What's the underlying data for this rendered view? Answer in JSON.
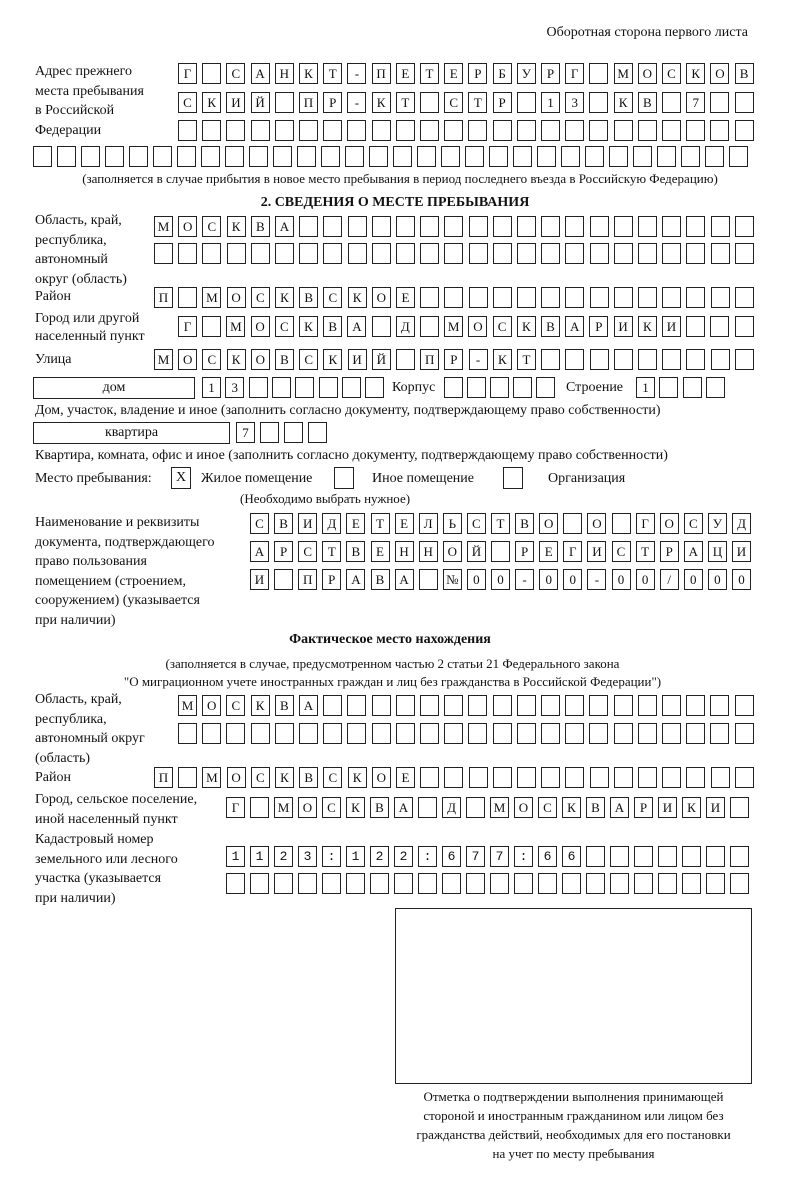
{
  "header": {
    "side_label": "Оборотная сторона первого листа"
  },
  "previous_address": {
    "label": "Адрес прежнего\nместа пребывания\nв Российской\nФедерации",
    "rows": [
      "Г САНКТ-ПЕТЕРБУРГ МОСКОВ",
      "СКИЙ ПР-КТ СТР 13 КВ 7",
      "",
      ""
    ],
    "note": "(заполняется в случае прибытия в новое место пребывания в период последнего въезда в Российскую Федерацию)"
  },
  "section2": {
    "title": "2. СВЕДЕНИЯ О МЕСТЕ ПРЕБЫВАНИЯ",
    "region_label": "Область, край,\nреспублика,\nавтономный\nокруг (область)",
    "region_rows": [
      "МОСКВА",
      ""
    ],
    "district_label": "Район",
    "district": "П МОСКВСКОЕ",
    "city_label": "Город или другой\nнаселенный пункт",
    "city": "Г МОСКВА Д МОСКВАРИКИ",
    "street_label": "Улица",
    "street": "МОСКОВСКИЙ ПР-КТ",
    "house_type": "дом",
    "house_number": "13",
    "building_label": "Корпус",
    "building": "",
    "structure_label": "Строение",
    "structure": "1",
    "house_caption": "Дом, участок, владение и иное (заполнить согласно документу, подтверждающему право собственности)",
    "apartment_type": "квартира",
    "apartment_number": "7",
    "apartment_caption": "Квартира, комната, офис и иное (заполнить согласно документу, подтверждающему право собственности)",
    "stay_place_label": "Место пребывания:",
    "stay_options": [
      {
        "label": "Жилое помещение",
        "checked": true,
        "mark": "X"
      },
      {
        "label": "Иное помещение",
        "checked": false,
        "mark": ""
      },
      {
        "label": "Организация",
        "checked": false,
        "mark": ""
      }
    ],
    "stay_note": "(Необходимо выбрать нужное)",
    "document_label": "Наименование и реквизиты\nдокумента, подтверждающего\nправо пользования\nпомещением (строением,\nсооружением) (указывается\nпри наличии)",
    "document_rows": [
      "СВИДЕТЕЛЬСТВО О ГОСУД",
      "АРСТВЕННОЙ РЕГИСТРАЦИ",
      "И ПРАВА №00-00-00/000"
    ]
  },
  "actual_location": {
    "title": "Фактическое место нахождения",
    "note_line1": "(заполняется в случае, предусмотренном частью 2 статьи 21 Федерального закона",
    "note_line2": "\"О миграционном учете иностранных граждан и лиц без гражданства в Российской Федерации\")",
    "region_label": "Область, край,\nреспублика,\nавтономный округ\n(область)",
    "region_rows": [
      "МОСКВА",
      ""
    ],
    "district_label": "Район",
    "district": "П МОСКВСКОЕ",
    "city_label": "Город, сельское поселение,\nиной населенный пункт",
    "city": "Г МОСКВА Д МОСКВАРИКИ",
    "cadastral_label": "Кадастровый номер\nземельного или лесного\nучастка (указывается\nпри наличии)",
    "cadastral_rows": [
      "1123:122:677:66",
      ""
    ]
  },
  "confirmation": {
    "caption": "Отметка о подтверждении выполнения принимающей\nстороной и иностранным гражданином или лицом без\nгражданства действий, необходимых для его постановки\nна учет по месту пребывания"
  }
}
